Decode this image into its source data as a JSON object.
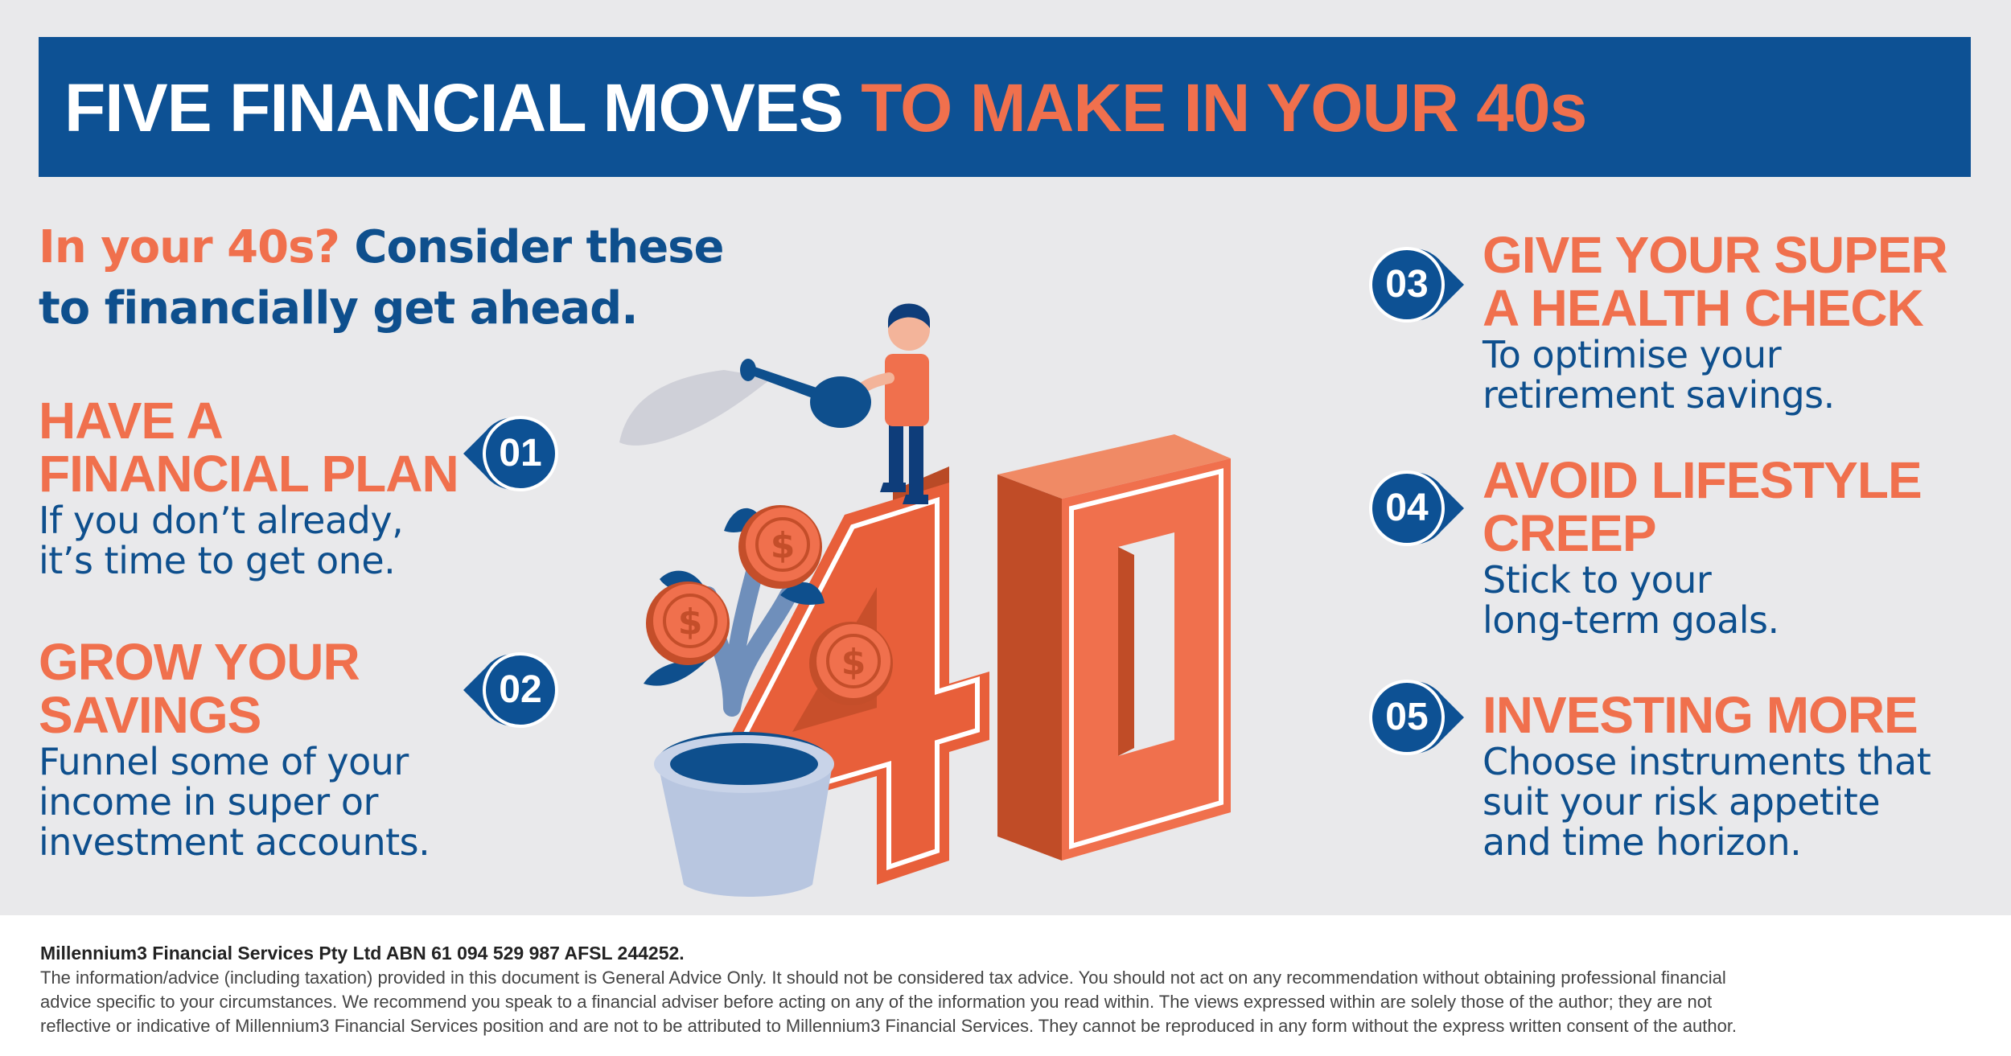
{
  "banner": {
    "title_part1": "FIVE FINANCIAL MOVES",
    "title_part2": "TO MAKE IN YOUR 40s"
  },
  "intro": {
    "highlight": "In your 40s?",
    "line1_rest": "Consider these",
    "line2": "to financially get ahead."
  },
  "illustration": {
    "big_number": "40",
    "coin_symbol": "$"
  },
  "items": [
    {
      "number": "01",
      "heading_lines": [
        "HAVE A",
        "FINANCIAL PLAN"
      ],
      "body_lines": [
        "If you don’t already,",
        "it’s time to get one."
      ]
    },
    {
      "number": "02",
      "heading_lines": [
        "GROW YOUR",
        "SAVINGS"
      ],
      "body_lines": [
        "Funnel some of your",
        "income in super or",
        "investment accounts."
      ]
    },
    {
      "number": "03",
      "heading_lines": [
        "GIVE YOUR SUPER",
        "A HEALTH CHECK"
      ],
      "body_lines": [
        "To optimise your",
        "retirement savings."
      ]
    },
    {
      "number": "04",
      "heading_lines": [
        "AVOID LIFESTYLE",
        "CREEP"
      ],
      "body_lines": [
        "Stick to your",
        "long-term goals."
      ]
    },
    {
      "number": "05",
      "heading_lines": [
        "INVESTING MORE"
      ],
      "body_lines": [
        "Choose instruments that",
        "suit your risk appetite",
        "and time horizon."
      ]
    }
  ],
  "footer": {
    "company": "Millennium3 Financial Services Pty Ltd ABN 61 094 529 987 AFSL 244252.",
    "disclaimer_lines": [
      "The information/advice (including taxation) provided in this document is General Advice Only. It should not be considered tax advice. You should not act on any recommendation without obtaining professional financial",
      "advice specific to your circumstances. We recommend you speak to a financial adviser before acting on any of the information you read within. The views expressed within are solely those of the author; they are not",
      "reflective or indicative of Millennium3 Financial Services position and are not to be attributed to Millennium3 Financial Services. They cannot be reproduced in any form without the express written consent of the author."
    ]
  },
  "colors": {
    "navy": "#0d5194",
    "orange": "#f0704d",
    "background": "#e9e9eb"
  }
}
